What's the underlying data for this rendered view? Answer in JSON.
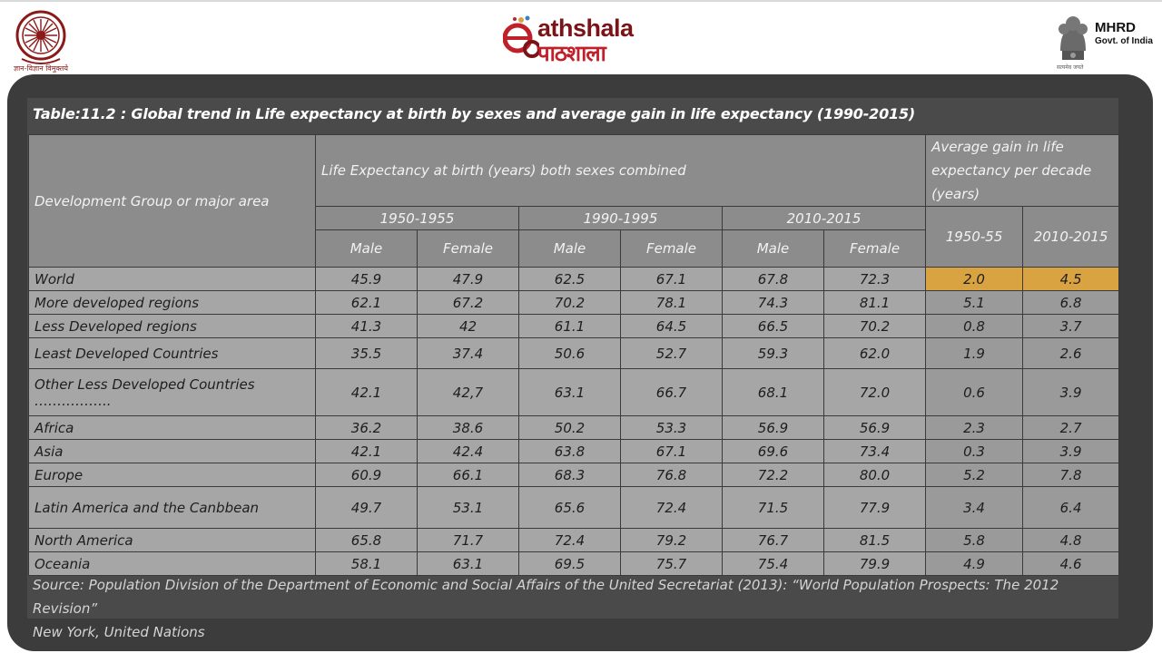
{
  "header": {
    "ugc_caption": "ज्ञान-विज्ञान विमुक्तये",
    "brand_english": "athshala",
    "brand_hindi": "पाठशाला",
    "ministry": "MHRD",
    "govt": "Govt. of India",
    "motto": "सत्यमेव जयते"
  },
  "table": {
    "title": "Table:11.2 : Global trend in Life expectancy at birth by sexes and average gain in life expectancy (1990-2015)",
    "col_group_label": "Development Group or major area",
    "life_exp_label": "Life Expectancy at birth (years) both sexes combined",
    "gain_label_line1": "Average gain in life",
    "gain_label_line2": "expectancy per decade",
    "gain_label_line3": "(years)",
    "periods": [
      "1950-1955",
      "1990-1995",
      "2010-2015"
    ],
    "sex_labels": [
      "Male",
      "Female"
    ],
    "gain_periods": [
      "1950-55",
      "2010-2015"
    ],
    "rows": [
      {
        "area": "World",
        "area2": "",
        "v": [
          "45.9",
          "47.9",
          "62.5",
          "67.1",
          "67.8",
          "72.3"
        ],
        "g": [
          "2.0",
          "4.5"
        ]
      },
      {
        "area": "More developed regions",
        "area2": "",
        "v": [
          "62.1",
          "67.2",
          "70.2",
          "78.1",
          "74.3",
          "81.1"
        ],
        "g": [
          "5.1",
          "6.8"
        ]
      },
      {
        "area": "Less Developed regions",
        "area2": "",
        "v": [
          "41.3",
          "42",
          "61.1",
          "64.5",
          "66.5",
          "70.2"
        ],
        "g": [
          "0.8",
          "3.7"
        ]
      },
      {
        "area": "Least Developed Countries",
        "area2": "",
        "v": [
          "35.5",
          "37.4",
          "50.6",
          "52.7",
          "59.3",
          "62.0"
        ],
        "g": [
          "1.9",
          "2.6"
        ]
      },
      {
        "area": "Other Less Developed Countries",
        "area2": "……………..",
        "v": [
          "42.1",
          "42,7",
          "63.1",
          "66.7",
          "68.1",
          "72.0"
        ],
        "g": [
          "0.6",
          "3.9"
        ]
      },
      {
        "area": "Africa",
        "area2": "",
        "v": [
          "36.2",
          "38.6",
          "50.2",
          "53.3",
          "56.9",
          "56.9"
        ],
        "g": [
          "2.3",
          "2.7"
        ]
      },
      {
        "area": "Asia",
        "area2": "",
        "v": [
          "42.1",
          "42.4",
          "63.8",
          "67.1",
          "69.6",
          "73.4"
        ],
        "g": [
          "0.3",
          "3.9"
        ]
      },
      {
        "area": "Europe",
        "area2": "",
        "v": [
          "60.9",
          "66.1",
          "68.3",
          "76.8",
          "72.2",
          "80.0"
        ],
        "g": [
          "5.2",
          "7.8"
        ]
      },
      {
        "area": "Latin America and the Canbbean",
        "area2": "",
        "v": [
          "49.7",
          "53.1",
          "65.6",
          "72.4",
          "71.5",
          "77.9"
        ],
        "g": [
          "3.4",
          "6.4"
        ]
      },
      {
        "area": "North America",
        "area2": "",
        "v": [
          "65.8",
          "71.7",
          "72.4",
          "79.2",
          "76.7",
          "81.5"
        ],
        "g": [
          "5.8",
          "4.8"
        ]
      },
      {
        "area": "Oceania",
        "area2": "",
        "v": [
          "58.1",
          "63.1",
          "69.5",
          "75.7",
          "75.4",
          "79.9"
        ],
        "g": [
          "4.9",
          "4.6"
        ]
      }
    ],
    "source_line1": "Source: Population Division of the Department of Economic and Social Affairs of the United Secretariat (2013): “World Population Prospects: The 2012 Revision”",
    "source_line2": "New York, United Nations"
  },
  "colors": {
    "highlight": "#d9a341",
    "frame": "#3c3c3c",
    "cell": "#a6a6a6",
    "brand_dark_red": "#7b1418",
    "brand_red": "#c0202a"
  }
}
